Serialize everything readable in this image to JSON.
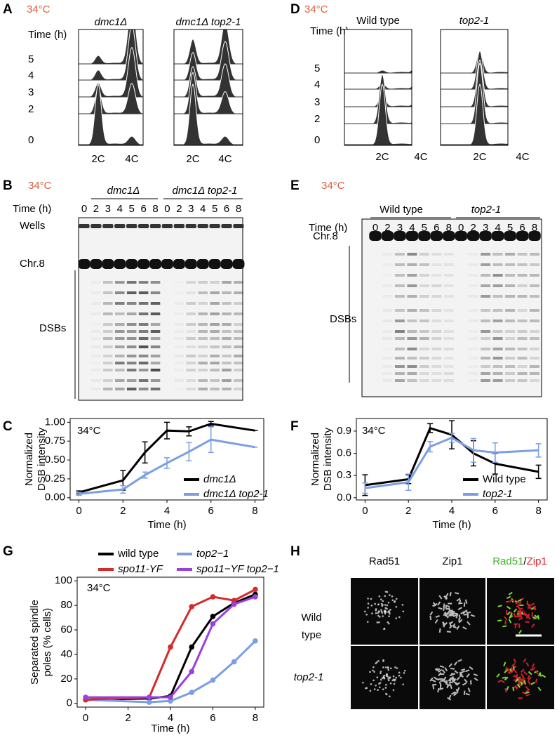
{
  "chart_data": [
    {
      "type": "line",
      "panel_label": "C",
      "annotation": "34°C",
      "annotation_color": "#d9603b",
      "ylabel": [
        "Normalized",
        "DSB intensity"
      ],
      "xlabel": "Time (h)",
      "x": [
        0,
        2,
        3,
        4,
        5,
        6,
        8
      ],
      "xlim": [
        -0.4,
        8.4
      ],
      "xticks": [
        0,
        2,
        4,
        6,
        8
      ],
      "ylim": [
        -0.03,
        1.05
      ],
      "yticks": [
        {
          "value": 0,
          "label": "0.00"
        },
        0.25,
        {
          "value": 0.5,
          "label": "0.50"
        },
        0.75,
        {
          "value": 1,
          "label": "1.00"
        }
      ],
      "legend": "lower right",
      "series": [
        {
          "name": "dmc1Δ",
          "color": "#000000",
          "values": [
            0.07,
            0.23,
            0.6,
            0.89,
            0.88,
            0.98,
            0.89
          ],
          "errors": [
            0.02,
            0.13,
            0.14,
            0.11,
            0.06,
            0.03,
            0
          ]
        },
        {
          "name": "dmc1Δ top2-1",
          "color": "#7b9fe0",
          "values": [
            0.05,
            0.11,
            0.3,
            0.46,
            0.61,
            0.77,
            0.67
          ],
          "errors": [
            0.02,
            0.05,
            0.04,
            0.07,
            0.12,
            0.17,
            0
          ]
        }
      ]
    },
    {
      "type": "line",
      "panel_label": "F",
      "annotation": "34°C",
      "annotation_color": "#d9603b",
      "ylabel": [
        "Normalized",
        "DSB intensity"
      ],
      "xlabel": "Time (h)",
      "x": [
        0,
        2,
        3,
        4,
        5,
        6,
        8
      ],
      "xlim": [
        -0.4,
        8.4
      ],
      "xticks": [
        0,
        2,
        4,
        6,
        8
      ],
      "ylim": [
        -0.03,
        1.07
      ],
      "yticks": [
        {
          "value": 0,
          "label": "0.0"
        },
        0.3,
        0.6,
        0.9
      ],
      "legend": "lower right",
      "series": [
        {
          "name": "Wild type",
          "color": "#000000",
          "values": [
            0.17,
            0.25,
            0.94,
            0.85,
            0.6,
            0.46,
            0.35
          ],
          "errors": [
            0.14,
            0.06,
            0.06,
            0.19,
            0.17,
            0.14,
            0.09
          ]
        },
        {
          "name": "top2-1",
          "color": "#7b9fe0",
          "values": [
            0.13,
            0.21,
            0.69,
            0.81,
            0.64,
            0.61,
            0.64
          ],
          "errors": [
            0.07,
            0.11,
            0.07,
            0.06,
            0.16,
            0.13,
            0.09
          ]
        }
      ]
    },
    {
      "type": "line",
      "panel_label": "G",
      "annotation": "34°C",
      "annotation_color": "#d9603b",
      "ylabel": [
        "Separated spindle",
        "poles (% cells)"
      ],
      "xlabel": "Time (h)",
      "markers": true,
      "x": [
        0,
        3,
        4,
        5,
        6,
        7,
        8
      ],
      "xlim": [
        -0.4,
        8.4
      ],
      "xticks": [
        0,
        2,
        4,
        6,
        8
      ],
      "ylim": [
        -3,
        103
      ],
      "yticks": [
        0,
        20,
        40,
        60,
        80,
        100
      ],
      "legend": "top",
      "series": [
        {
          "name": "wild type",
          "color": "#000000",
          "values": [
            3,
            4,
            6,
            46,
            71,
            82,
            89
          ]
        },
        {
          "name": "top2−1",
          "color": "#7b9fe0",
          "values": [
            3,
            1,
            2,
            9,
            19,
            34,
            51
          ]
        },
        {
          "name": "spo11-YF",
          "color": "#d42a2a",
          "values": [
            3,
            5,
            46,
            79,
            87,
            84,
            93
          ]
        },
        {
          "name": "spo11−YF top2−1",
          "color": "#9b40e0",
          "values": [
            5,
            5,
            5,
            26,
            65,
            81,
            87
          ]
        }
      ]
    }
  ],
  "panels": {
    "A": {
      "label": "A",
      "temperature": "34°C",
      "time_label": "Time (h)",
      "times": [
        "5",
        "4",
        "3",
        "2",
        "0"
      ],
      "strains": [
        "dmc1Δ",
        "dmc1Δ top2-1"
      ],
      "ploidy": [
        "2C",
        "4C"
      ]
    },
    "B": {
      "label": "B",
      "temperature": "34°C",
      "time_label": "Time (h)",
      "strains": [
        "dmc1Δ",
        "dmc1Δ top2-1"
      ],
      "lanes": [
        "0",
        "2",
        "3",
        "4",
        "5",
        "6",
        "8"
      ],
      "bands": [
        "Wells",
        "Chr.8",
        "DSBs"
      ]
    },
    "D": {
      "label": "D",
      "temperature": "34°C",
      "time_label": "Time (h)",
      "times": [
        "5",
        "4",
        "3",
        "2",
        "0"
      ],
      "strains": [
        "Wild type",
        "top2-1"
      ],
      "ploidy": [
        "2C",
        "4C"
      ]
    },
    "E": {
      "label": "E",
      "temperature": "34°C",
      "time_label": "Time (h)",
      "strains": [
        "Wild type",
        "top2-1"
      ],
      "lanes": [
        "0",
        "2",
        "3",
        "4",
        "5",
        "6",
        "8"
      ],
      "bands": [
        "Chr.8",
        "DSBs"
      ]
    },
    "H": {
      "label": "H",
      "channels": [
        "Rad51",
        "Zip1"
      ],
      "merge": [
        "Rad51",
        "/",
        "Zip1"
      ],
      "rows": [
        [
          "Wild",
          "type"
        ],
        [
          "top2-1"
        ]
      ]
    }
  }
}
